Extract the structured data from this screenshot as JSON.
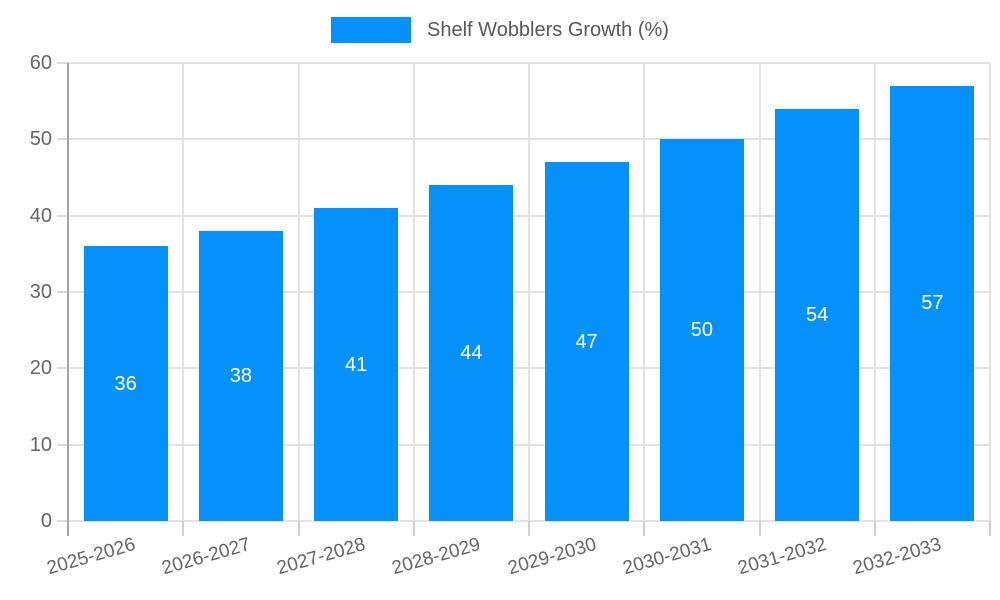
{
  "colors": {
    "bar": "#0691fa",
    "grid": "#e3e3e3",
    "axis": "#a5a5a5",
    "tick_text": "#666666",
    "legend_text": "#58585a",
    "bar_label_text": "#ffffff"
  },
  "chart_data": {
    "type": "bar",
    "title": "",
    "categories": [
      "2025-2026",
      "2026-2027",
      "2027-2028",
      "2028-2029",
      "2029-2030",
      "2030-2031",
      "2031-2032",
      "2032-2033"
    ],
    "series": [
      {
        "name": "Shelf Wobblers Growth (%)",
        "values": [
          36,
          38,
          41,
          44,
          47,
          50,
          54,
          57
        ]
      }
    ],
    "ylim": [
      0,
      60
    ],
    "yticks": [
      0,
      10,
      20,
      30,
      40,
      50,
      60
    ],
    "grid": true,
    "legend_position": "top",
    "value_labels": "inside-center",
    "x_tick_rotation_deg": -16
  }
}
